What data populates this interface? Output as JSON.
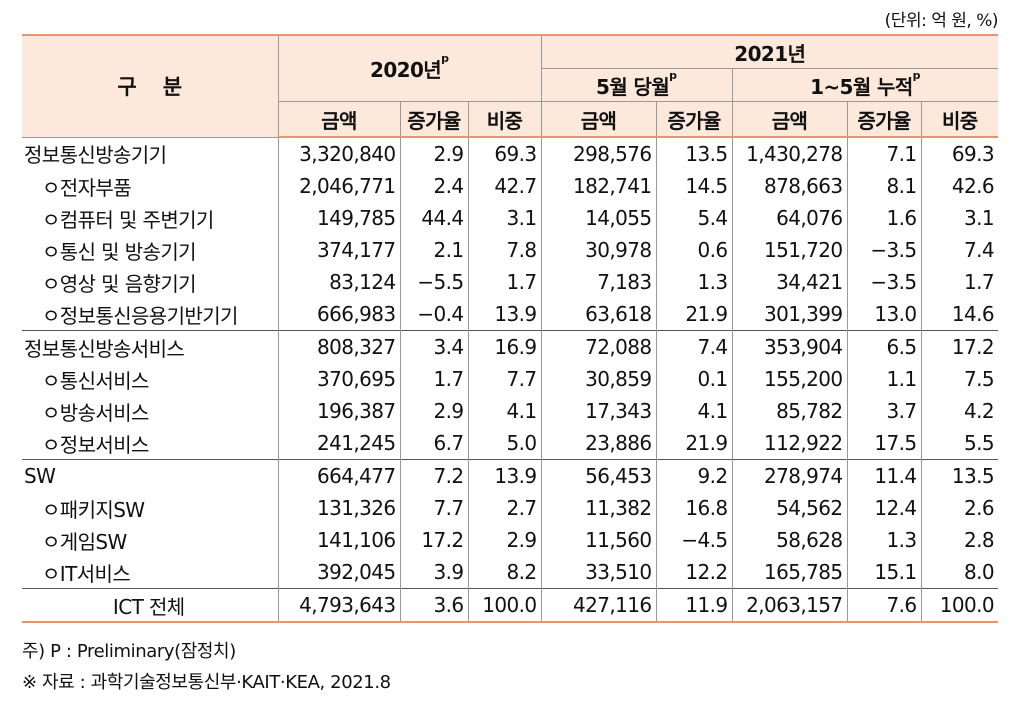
{
  "unit": "(단위: 억 원, %)",
  "header": {
    "gubun": "구분",
    "y2020": "2020년",
    "y2020_sup": "p",
    "y2021": "2021년",
    "may": "5월 당월",
    "may_sup": "p",
    "cumulative": "1~5월 누적",
    "cum_sup": "p",
    "amount": "금액",
    "growth": "증가율",
    "share": "비중"
  },
  "rows": [
    {
      "name": "정보통신방송기기",
      "a2020": "3,320,840",
      "g2020": "2.9",
      "s2020": "69.3",
      "amay": "298,576",
      "gmay": "13.5",
      "acum": "1,430,278",
      "gcum": "7.1",
      "scum": "69.3"
    },
    {
      "name": "ㅇ전자부품",
      "a2020": "2,046,771",
      "g2020": "2.4",
      "s2020": "42.7",
      "amay": "182,741",
      "gmay": "14.5",
      "acum": "878,663",
      "gcum": "8.1",
      "scum": "42.6"
    },
    {
      "name": "ㅇ컴퓨터 및 주변기기",
      "a2020": "149,785",
      "g2020": "44.4",
      "s2020": "3.1",
      "amay": "14,055",
      "gmay": "5.4",
      "acum": "64,076",
      "gcum": "1.6",
      "scum": "3.1"
    },
    {
      "name": "ㅇ통신 및 방송기기",
      "a2020": "374,177",
      "g2020": "2.1",
      "s2020": "7.8",
      "amay": "30,978",
      "gmay": "0.6",
      "acum": "151,720",
      "gcum": "−3.5",
      "scum": "7.4"
    },
    {
      "name": "ㅇ영상 및 음향기기",
      "a2020": "83,124",
      "g2020": "−5.5",
      "s2020": "1.7",
      "amay": "7,183",
      "gmay": "1.3",
      "acum": "34,421",
      "gcum": "−3.5",
      "scum": "1.7"
    },
    {
      "name": "ㅇ정보통신응용기반기기",
      "a2020": "666,983",
      "g2020": "−0.4",
      "s2020": "13.9",
      "amay": "63,618",
      "gmay": "21.9",
      "acum": "301,399",
      "gcum": "13.0",
      "scum": "14.6"
    },
    {
      "name": "정보통신방송서비스",
      "a2020": "808,327",
      "g2020": "3.4",
      "s2020": "16.9",
      "amay": "72,088",
      "gmay": "7.4",
      "acum": "353,904",
      "gcum": "6.5",
      "scum": "17.2"
    },
    {
      "name": "ㅇ통신서비스",
      "a2020": "370,695",
      "g2020": "1.7",
      "s2020": "7.7",
      "amay": "30,859",
      "gmay": "0.1",
      "acum": "155,200",
      "gcum": "1.1",
      "scum": "7.5"
    },
    {
      "name": "ㅇ방송서비스",
      "a2020": "196,387",
      "g2020": "2.9",
      "s2020": "4.1",
      "amay": "17,343",
      "gmay": "4.1",
      "acum": "85,782",
      "gcum": "3.7",
      "scum": "4.2"
    },
    {
      "name": "ㅇ정보서비스",
      "a2020": "241,245",
      "g2020": "6.7",
      "s2020": "5.0",
      "amay": "23,886",
      "gmay": "21.9",
      "acum": "112,922",
      "gcum": "17.5",
      "scum": "5.5"
    },
    {
      "name": "SW",
      "a2020": "664,477",
      "g2020": "7.2",
      "s2020": "13.9",
      "amay": "56,453",
      "gmay": "9.2",
      "acum": "278,974",
      "gcum": "11.4",
      "scum": "13.5"
    },
    {
      "name": "ㅇ패키지SW",
      "a2020": "131,326",
      "g2020": "7.7",
      "s2020": "2.7",
      "amay": "11,382",
      "gmay": "16.8",
      "acum": "54,562",
      "gcum": "12.4",
      "scum": "2.6"
    },
    {
      "name": "ㅇ게임SW",
      "a2020": "141,106",
      "g2020": "17.2",
      "s2020": "2.9",
      "amay": "11,560",
      "gmay": "−4.5",
      "acum": "58,628",
      "gcum": "1.3",
      "scum": "2.8"
    },
    {
      "name": "ㅇIT서비스",
      "a2020": "392,045",
      "g2020": "3.9",
      "s2020": "8.2",
      "amay": "33,510",
      "gmay": "12.2",
      "acum": "165,785",
      "gcum": "15.1",
      "scum": "8.0"
    },
    {
      "name": "ICT 전체",
      "a2020": "4,793,643",
      "g2020": "3.6",
      "s2020": "100.0",
      "amay": "427,116",
      "gmay": "11.9",
      "acum": "2,063,157",
      "gcum": "7.6",
      "scum": "100.0"
    }
  ],
  "notes": {
    "note1": "주) P : Preliminary(잠정치)",
    "note2": "※ 자료 : 과학기술정보통신부·KAIT·KEA, 2021.8"
  }
}
